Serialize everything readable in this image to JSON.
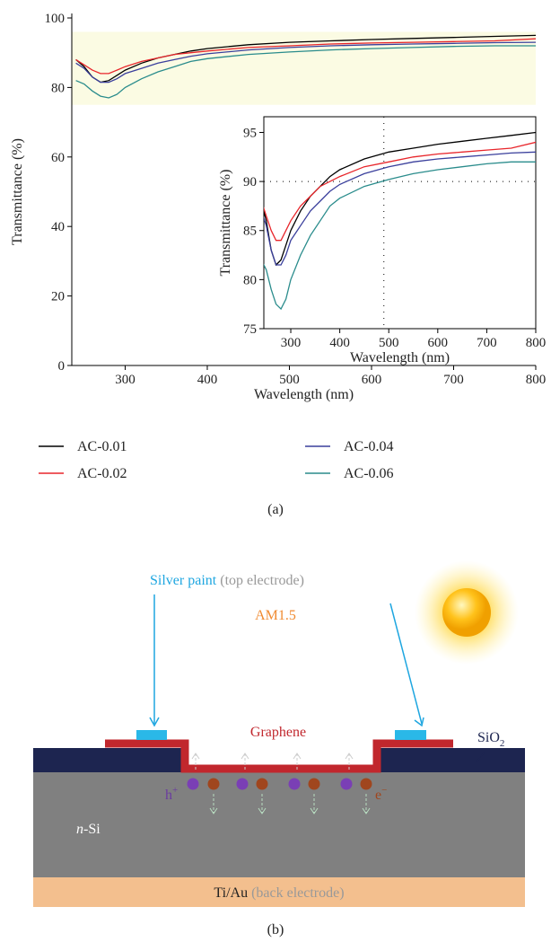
{
  "chart_data": [
    {
      "type": "line",
      "x": [
        240,
        250,
        260,
        270,
        280,
        290,
        300,
        320,
        340,
        360,
        380,
        400,
        450,
        500,
        550,
        600,
        650,
        700,
        750,
        800
      ],
      "series": [
        {
          "name": "AC-0.01",
          "color": "#000000",
          "values": [
            88,
            86,
            83,
            81.5,
            82,
            83.5,
            85,
            87,
            88.5,
            89.5,
            90.5,
            91.2,
            92.3,
            93,
            93.4,
            93.8,
            94.1,
            94.4,
            94.7,
            95
          ]
        },
        {
          "name": "AC-0.02",
          "color": "#e8262b",
          "values": [
            88,
            86.5,
            85,
            84,
            84,
            85,
            86,
            87.5,
            88.5,
            89.5,
            90,
            90.5,
            91.5,
            92,
            92.5,
            92.8,
            93,
            93.2,
            93.4,
            94
          ]
        },
        {
          "name": "AC-0.04",
          "color": "#3a3f9c",
          "values": [
            87,
            85.5,
            83,
            81.5,
            81.5,
            82.5,
            84,
            85.5,
            87,
            88,
            89,
            89.7,
            90.8,
            91.5,
            92,
            92.3,
            92.5,
            92.7,
            92.9,
            93
          ]
        },
        {
          "name": "AC-0.06",
          "color": "#2a8c8c",
          "values": [
            82,
            81,
            79,
            77.5,
            77,
            78,
            80,
            82.5,
            84.5,
            86,
            87.5,
            88.3,
            89.5,
            90.2,
            90.8,
            91.2,
            91.5,
            91.8,
            92,
            92
          ]
        }
      ],
      "xlim": [
        235,
        800
      ],
      "ylim": [
        0,
        100
      ],
      "xticks": [
        300,
        400,
        500,
        600,
        700,
        800
      ],
      "yticks": [
        0,
        20,
        40,
        60,
        80,
        100
      ],
      "x_label": "Wavelength (nm)",
      "y_label": "Transmittance (%)",
      "highlight_band": {
        "range": [
          75,
          96
        ],
        "color": "#fbfbe3"
      },
      "legend": "bottom"
    },
    {
      "type": "line",
      "inset": true,
      "xlim": [
        245,
        800
      ],
      "ylim": [
        75,
        96.6
      ],
      "xticks": [
        300,
        400,
        500,
        600,
        700,
        800
      ],
      "yticks": [
        75,
        80,
        85,
        90,
        95
      ],
      "x_label": "Wavelength (nm)",
      "y_label": "Transmittance (%)",
      "reference_lines": {
        "x": 490,
        "y": 90
      }
    }
  ],
  "panel_a": "(a)",
  "diagram": {
    "light": "AM1.5",
    "top_electrode": {
      "name": "Silver paint",
      "note": "(top electrode)"
    },
    "graphene": "Graphene",
    "oxide": {
      "base": "SiO",
      "sub": "2"
    },
    "hole": {
      "base": "h",
      "sup": "+"
    },
    "electron": {
      "base": "e",
      "sup": "−"
    },
    "substrate": {
      "italic": "n",
      "rest": "-Si"
    },
    "back_electrode": {
      "name": "Ti/Au",
      "note": "(back electrode)"
    }
  },
  "panel_b": "(b)"
}
